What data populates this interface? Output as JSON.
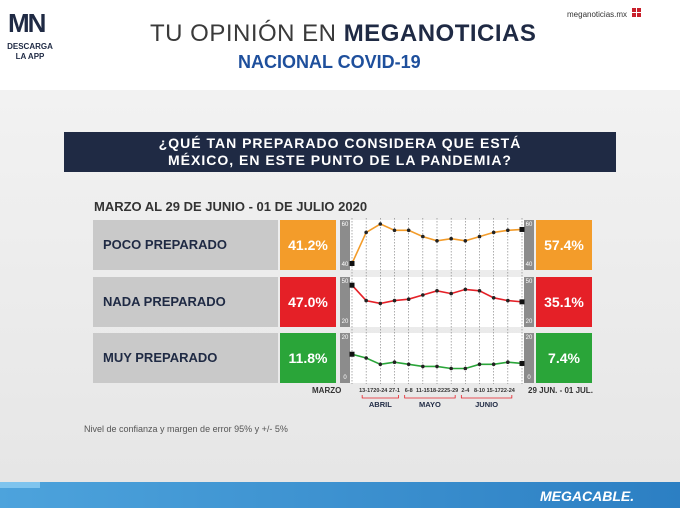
{
  "header": {
    "logo_text": "MN",
    "logo_sub1": "DESCARGA",
    "logo_sub2": "LA APP",
    "title_prefix": "TU OPINIÓN EN",
    "title_brand": "MEGANOTICIAS",
    "subtitle": "NACIONAL COVID-19",
    "site": "meganoticias.mx"
  },
  "question_line1": "¿QUÉ TAN PREPARADO CONSIDERA QUE ESTÁ",
  "question_line2": "MÉXICO, EN ESTE PUNTO DE LA PANDEMIA?",
  "date_range": "MARZO AL 29 DE JUNIO - 01 DE JULIO 2020",
  "footnote": "Nivel de confianza y margen de error 95% y +/- 5%",
  "footer_brand": "MEGACABLE.",
  "colors": {
    "orange": "#f39c2a",
    "red": "#e52027",
    "green": "#2aa539",
    "navy": "#1f2a44"
  },
  "chart_data": {
    "type": "line",
    "x_start_label": "MARZO",
    "x_end_label": "29 JUN. - 01 JUL.",
    "x_tick_labels": [
      "13-17",
      "20-24",
      "27-1",
      "6-8",
      "11-15",
      "18-22",
      "25-29",
      "2-4",
      "8-10",
      "15-17",
      "22-24"
    ],
    "month_labels": [
      "ABRIL",
      "MAYO",
      "JUNIO"
    ],
    "series": [
      {
        "name": "POCO PREPARADO",
        "start_label": "41.2%",
        "end_label": "57.4%",
        "scale_top": "60",
        "scale_bottom": "40",
        "ylim": [
          40,
          60
        ],
        "values": [
          41.2,
          56,
          60,
          57,
          57,
          54,
          52,
          53,
          52,
          54,
          56,
          57,
          57.4
        ]
      },
      {
        "name": "NADA PREPARADO",
        "start_label": "47.0%",
        "end_label": "35.1%",
        "scale_top": "50",
        "scale_bottom": "20",
        "ylim": [
          20,
          50
        ],
        "values": [
          47.0,
          36,
          34,
          36,
          37,
          40,
          43,
          41,
          44,
          43,
          38,
          36,
          35.1
        ]
      },
      {
        "name": "MUY PREPARADO",
        "start_label": "11.8%",
        "end_label": "7.4%",
        "scale_top": "20",
        "scale_bottom": "0",
        "ylim": [
          0,
          20
        ],
        "values": [
          11.8,
          10,
          7,
          8,
          7,
          6,
          6,
          5,
          5,
          7,
          7,
          8,
          7.4
        ]
      }
    ]
  }
}
